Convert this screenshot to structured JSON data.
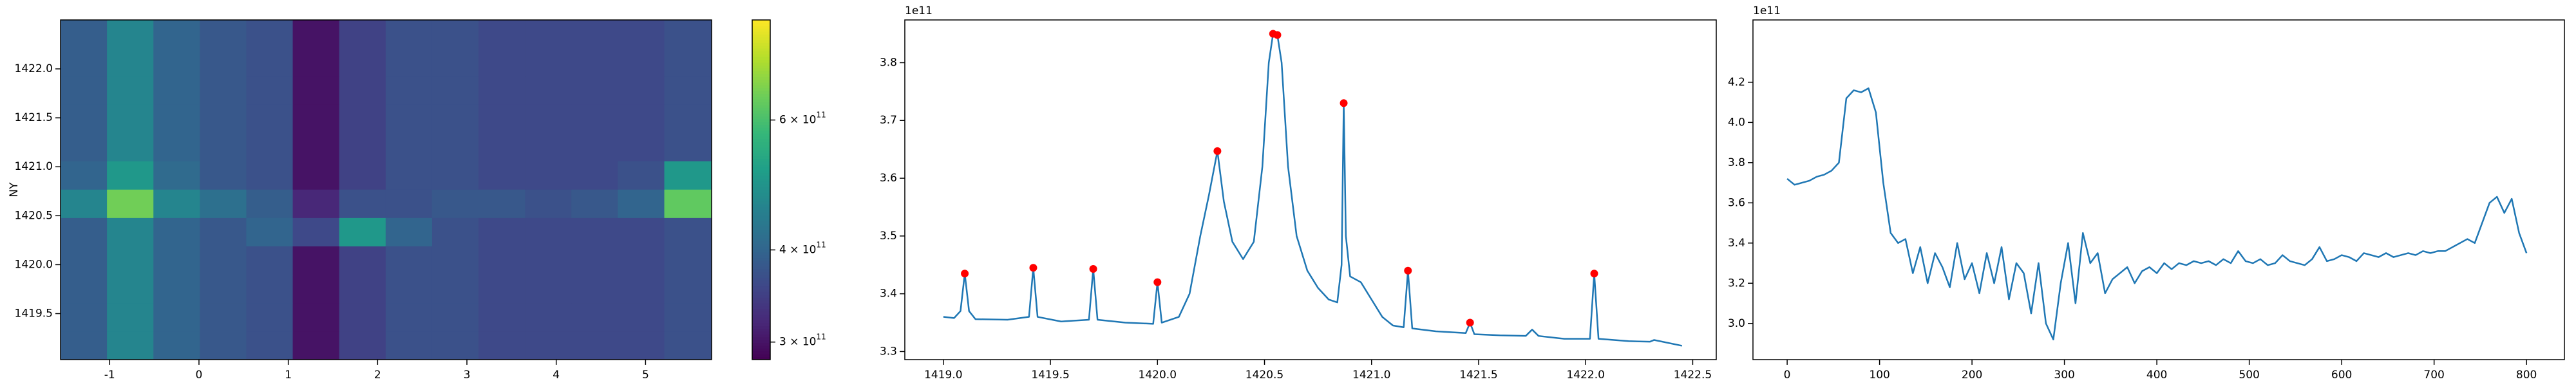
{
  "chart_data": [
    {
      "type": "heatmap",
      "ylabel": "NY",
      "xlim": [
        -1.55,
        5.74
      ],
      "ylim": [
        1419.03,
        1422.5
      ],
      "xticks": [
        -1,
        0,
        1,
        2,
        3,
        4,
        5
      ],
      "yticks": [
        1419.5,
        {
          "value": 1420,
          "label": "1420.0"
        },
        1420.5,
        {
          "value": 1421,
          "label": "1421.0"
        },
        1421.5,
        {
          "value": 1422,
          "label": "1422.0"
        }
      ],
      "colormap": "viridis",
      "color_scale": "log",
      "clim": [
        284000000000.0,
        820000000000.0
      ],
      "colorbar_ticks": [
        {
          "value": 300000000000.0,
          "label": "3 × 10",
          "exponent": "11"
        },
        {
          "value": 400000000000.0,
          "label": "4 × 10",
          "exponent": "11"
        },
        {
          "value": 600000000000.0,
          "label": "6 × 10",
          "exponent": "11"
        }
      ],
      "x_edges": [
        -1.55,
        -1.03,
        -0.51,
        0.01,
        0.53,
        1.05,
        1.57,
        2.09,
        2.61,
        3.13,
        3.65,
        4.17,
        4.69,
        5.21,
        5.74
      ],
      "y_edges": [
        1419.03,
        1419.32,
        1419.61,
        1419.9,
        1420.19,
        1420.48,
        1420.77,
        1421.06,
        1421.35,
        1421.64,
        1421.93,
        1422.22,
        1422.5
      ],
      "values": [
        [
          390000000000.0,
          460000000000.0,
          400000000000.0,
          380000000000.0,
          370000000000.0,
          300000000000.0,
          350000000000.0,
          370000000000.0,
          370000000000.0,
          360000000000.0,
          360000000000.0,
          360000000000.0,
          360000000000.0,
          370000000000.0
        ],
        [
          390000000000.0,
          460000000000.0,
          400000000000.0,
          380000000000.0,
          370000000000.0,
          300000000000.0,
          350000000000.0,
          370000000000.0,
          370000000000.0,
          360000000000.0,
          360000000000.0,
          360000000000.0,
          360000000000.0,
          370000000000.0
        ],
        [
          390000000000.0,
          460000000000.0,
          400000000000.0,
          380000000000.0,
          370000000000.0,
          300000000000.0,
          350000000000.0,
          370000000000.0,
          370000000000.0,
          360000000000.0,
          360000000000.0,
          360000000000.0,
          360000000000.0,
          370000000000.0
        ],
        [
          390000000000.0,
          460000000000.0,
          400000000000.0,
          380000000000.0,
          370000000000.0,
          300000000000.0,
          350000000000.0,
          370000000000.0,
          370000000000.0,
          360000000000.0,
          360000000000.0,
          360000000000.0,
          360000000000.0,
          370000000000.0
        ],
        [
          390000000000.0,
          460000000000.0,
          400000000000.0,
          380000000000.0,
          400000000000.0,
          360000000000.0,
          500000000000.0,
          400000000000.0,
          370000000000.0,
          360000000000.0,
          360000000000.0,
          360000000000.0,
          360000000000.0,
          370000000000.0
        ],
        [
          460000000000.0,
          650000000000.0,
          460000000000.0,
          420000000000.0,
          390000000000.0,
          320000000000.0,
          370000000000.0,
          370000000000.0,
          380000000000.0,
          380000000000.0,
          370000000000.0,
          380000000000.0,
          400000000000.0,
          630000000000.0
        ],
        [
          400000000000.0,
          500000000000.0,
          410000000000.0,
          380000000000.0,
          370000000000.0,
          300000000000.0,
          350000000000.0,
          370000000000.0,
          370000000000.0,
          360000000000.0,
          360000000000.0,
          360000000000.0,
          370000000000.0,
          500000000000.0
        ],
        [
          390000000000.0,
          460000000000.0,
          400000000000.0,
          380000000000.0,
          370000000000.0,
          300000000000.0,
          350000000000.0,
          370000000000.0,
          370000000000.0,
          360000000000.0,
          360000000000.0,
          360000000000.0,
          360000000000.0,
          370000000000.0
        ],
        [
          390000000000.0,
          460000000000.0,
          400000000000.0,
          380000000000.0,
          370000000000.0,
          300000000000.0,
          350000000000.0,
          370000000000.0,
          370000000000.0,
          360000000000.0,
          360000000000.0,
          360000000000.0,
          360000000000.0,
          370000000000.0
        ],
        [
          390000000000.0,
          460000000000.0,
          400000000000.0,
          380000000000.0,
          370000000000.0,
          300000000000.0,
          350000000000.0,
          370000000000.0,
          370000000000.0,
          360000000000.0,
          360000000000.0,
          360000000000.0,
          360000000000.0,
          370000000000.0
        ],
        [
          390000000000.0,
          460000000000.0,
          400000000000.0,
          380000000000.0,
          370000000000.0,
          300000000000.0,
          350000000000.0,
          370000000000.0,
          370000000000.0,
          360000000000.0,
          360000000000.0,
          360000000000.0,
          360000000000.0,
          370000000000.0
        ],
        [
          390000000000.0,
          460000000000.0,
          400000000000.0,
          380000000000.0,
          370000000000.0,
          300000000000.0,
          350000000000.0,
          370000000000.0,
          370000000000.0,
          360000000000.0,
          360000000000.0,
          360000000000.0,
          360000000000.0,
          370000000000.0
        ]
      ]
    },
    {
      "type": "line",
      "offset_label": "1e11",
      "xlim": [
        1418.82,
        1422.61
      ],
      "ylim": [
        3.286,
        3.874
      ],
      "xticks": [
        {
          "value": 1419,
          "label": "1419.0"
        },
        1419.5,
        {
          "value": 1420,
          "label": "1420.0"
        },
        1420.5,
        {
          "value": 1421,
          "label": "1421.0"
        },
        1421.5,
        {
          "value": 1422,
          "label": "1422.0"
        },
        1422.5
      ],
      "yticks": [
        3.3,
        3.4,
        3.5,
        3.6,
        3.7,
        3.8
      ],
      "series": [
        {
          "style": "line",
          "color": "#1f77b4",
          "x": [
            1419.0,
            1419.05,
            1419.08,
            1419.1,
            1419.12,
            1419.15,
            1419.3,
            1419.4,
            1419.42,
            1419.44,
            1419.55,
            1419.68,
            1419.7,
            1419.72,
            1419.85,
            1419.98,
            1420.0,
            1420.02,
            1420.1,
            1420.15,
            1420.2,
            1420.24,
            1420.28,
            1420.31,
            1420.35,
            1420.4,
            1420.45,
            1420.49,
            1420.52,
            1420.54,
            1420.56,
            1420.58,
            1420.61,
            1420.65,
            1420.7,
            1420.75,
            1420.8,
            1420.84,
            1420.86,
            1420.87,
            1420.88,
            1420.9,
            1420.95,
            1421.0,
            1421.05,
            1421.1,
            1421.15,
            1421.17,
            1421.19,
            1421.3,
            1421.44,
            1421.46,
            1421.48,
            1421.6,
            1421.72,
            1421.75,
            1421.78,
            1421.9,
            1422.02,
            1422.04,
            1422.06,
            1422.2,
            1422.3,
            1422.32,
            1422.45
          ],
          "values": [
            3.36,
            3.358,
            3.37,
            3.435,
            3.37,
            3.356,
            3.355,
            3.36,
            3.445,
            3.36,
            3.352,
            3.355,
            3.443,
            3.355,
            3.35,
            3.348,
            3.42,
            3.35,
            3.36,
            3.4,
            3.5,
            3.57,
            3.647,
            3.56,
            3.49,
            3.46,
            3.49,
            3.62,
            3.8,
            3.85,
            3.848,
            3.8,
            3.62,
            3.5,
            3.44,
            3.41,
            3.39,
            3.385,
            3.45,
            3.73,
            3.5,
            3.43,
            3.42,
            3.39,
            3.36,
            3.345,
            3.342,
            3.44,
            3.34,
            3.335,
            3.332,
            3.35,
            3.33,
            3.328,
            3.327,
            3.338,
            3.327,
            3.322,
            3.322,
            3.435,
            3.322,
            3.318,
            3.317,
            3.32,
            3.31
          ]
        },
        {
          "style": "scatter",
          "color": "#ff0000",
          "x": [
            1419.1,
            1419.42,
            1419.7,
            1420.0,
            1420.28,
            1420.54,
            1420.56,
            1420.87,
            1421.17,
            1421.46,
            1422.04
          ],
          "values": [
            3.435,
            3.445,
            3.443,
            3.42,
            3.647,
            3.85,
            3.848,
            3.73,
            3.44,
            3.35,
            3.435
          ]
        }
      ]
    },
    {
      "type": "line",
      "offset_label": "1e11",
      "xlim": [
        -37,
        841
      ],
      "ylim": [
        2.82,
        4.51
      ],
      "xticks": [
        0,
        100,
        200,
        300,
        400,
        500,
        600,
        700,
        800
      ],
      "yticks": [
        {
          "value": 3,
          "label": "3.0"
        },
        3.2,
        3.4,
        3.6,
        3.8,
        {
          "value": 4,
          "label": "4.0"
        },
        4.2
      ],
      "series": [
        {
          "style": "line",
          "color": "#1f77b4",
          "x": [
            0,
            8,
            16,
            24,
            32,
            40,
            48,
            56,
            64,
            72,
            80,
            88,
            96,
            104,
            112,
            120,
            128,
            136,
            144,
            152,
            160,
            168,
            176,
            184,
            192,
            200,
            208,
            216,
            224,
            232,
            240,
            248,
            256,
            264,
            272,
            280,
            288,
            296,
            304,
            312,
            320,
            328,
            336,
            344,
            352,
            360,
            368,
            376,
            384,
            392,
            400,
            408,
            416,
            424,
            432,
            440,
            448,
            456,
            464,
            472,
            480,
            488,
            496,
            504,
            512,
            520,
            528,
            536,
            544,
            552,
            560,
            568,
            576,
            584,
            592,
            600,
            608,
            616,
            624,
            632,
            640,
            648,
            656,
            664,
            672,
            680,
            688,
            696,
            704,
            712,
            720,
            728,
            736,
            744,
            752,
            760,
            768,
            776,
            784,
            792,
            800
          ],
          "values": [
            3.72,
            3.69,
            3.7,
            3.71,
            3.73,
            3.74,
            3.76,
            3.8,
            4.12,
            4.16,
            4.15,
            4.17,
            4.05,
            3.7,
            3.45,
            3.4,
            3.42,
            3.25,
            3.38,
            3.2,
            3.35,
            3.28,
            3.18,
            3.4,
            3.22,
            3.3,
            3.15,
            3.35,
            3.2,
            3.38,
            3.12,
            3.3,
            3.25,
            3.05,
            3.3,
            3.0,
            2.92,
            3.2,
            3.4,
            3.1,
            3.45,
            3.3,
            3.35,
            3.15,
            3.22,
            3.25,
            3.28,
            3.2,
            3.26,
            3.28,
            3.25,
            3.3,
            3.27,
            3.3,
            3.29,
            3.31,
            3.3,
            3.31,
            3.29,
            3.32,
            3.3,
            3.36,
            3.31,
            3.3,
            3.32,
            3.29,
            3.3,
            3.34,
            3.31,
            3.3,
            3.29,
            3.32,
            3.38,
            3.31,
            3.32,
            3.34,
            3.33,
            3.31,
            3.35,
            3.34,
            3.33,
            3.35,
            3.33,
            3.34,
            3.35,
            3.34,
            3.36,
            3.35,
            3.36,
            3.36,
            3.38,
            3.4,
            3.42,
            3.4,
            3.5,
            3.6,
            3.63,
            3.55,
            3.62,
            3.45,
            3.35
          ]
        }
      ]
    }
  ]
}
